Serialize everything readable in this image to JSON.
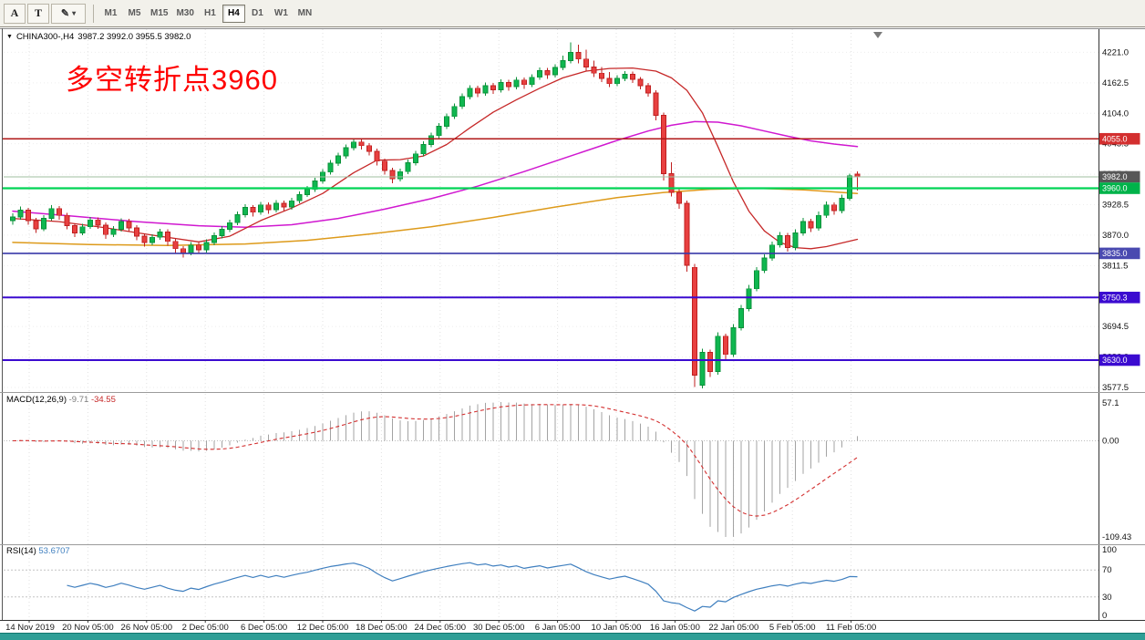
{
  "toolbar": {
    "buttons": {
      "font": "A",
      "text": "T"
    },
    "timeframes": [
      {
        "label": "M1",
        "active": false
      },
      {
        "label": "M5",
        "active": false
      },
      {
        "label": "M15",
        "active": false
      },
      {
        "label": "M30",
        "active": false
      },
      {
        "label": "H1",
        "active": false
      },
      {
        "label": "H4",
        "active": true
      },
      {
        "label": "D1",
        "active": false
      },
      {
        "label": "W1",
        "active": false
      },
      {
        "label": "MN",
        "active": false
      }
    ]
  },
  "icons": {
    "pencil": "✎",
    "caret_down": "▾",
    "symbol_caret": "▼"
  },
  "chart": {
    "symbol": "CHINA300-,H4",
    "ohlc_line": "3987.2 3992.0 3955.5 3982.0",
    "annotation": "多空转折点3960",
    "current_price": 3982.0,
    "hlines": [
      {
        "price": 4055.0,
        "color": "#b01818",
        "width": 1.4
      },
      {
        "price": 3960.0,
        "color": "#00d455",
        "width": 2.2
      },
      {
        "price": 3835.0,
        "color": "#3939a8",
        "width": 1.6
      },
      {
        "price": 3750.3,
        "color": "#3b0bd0",
        "width": 2
      },
      {
        "price": 3630.0,
        "color": "#3b0bd0",
        "width": 2
      }
    ],
    "badges": [
      {
        "label": "4055.0",
        "price": 4055.0,
        "bg": "#d32f2f"
      },
      {
        "label": "3982.0",
        "price": 3982.0,
        "bg": "#575757"
      },
      {
        "label": "3960.0",
        "price": 3960.0,
        "bg": "#00b34a"
      },
      {
        "label": "3835.0",
        "price": 3835.0,
        "bg": "#4a4ab0"
      },
      {
        "label": "3750.3",
        "price": 3750.3,
        "bg": "#3b0bd0"
      },
      {
        "label": "3630.0",
        "price": 3630.0,
        "bg": "#3b0bd0"
      }
    ]
  },
  "chart_data": {
    "type": "candlestick",
    "symbol": "CHINA300-",
    "timeframe": "H4",
    "ylim": [
      3576,
      4240
    ],
    "price_axis_ticks": [
      "4221.0",
      "4162.5",
      "4104.0",
      "4045.5",
      "3987.0",
      "3928.5",
      "3870.0",
      "3811.5",
      "3753.0",
      "3694.5",
      "3636.0",
      "3577.5"
    ],
    "time_axis_labels": [
      "14 Nov 2019",
      "20 Nov 05:00",
      "26 Nov 05:00",
      "2 Dec 05:00",
      "6 Dec 05:00",
      "12 Dec 05:00",
      "18 Dec 05:00",
      "24 Dec 05:00",
      "30 Dec 05:00",
      "6 Jan 05:00",
      "10 Jan 05:00",
      "16 Jan 05:00",
      "22 Jan 05:00",
      "5 Feb 05:00",
      "11 Feb 05:00"
    ],
    "ohlc": [
      [
        3898,
        3912,
        3890,
        3905
      ],
      [
        3905,
        3925,
        3900,
        3918
      ],
      [
        3918,
        3922,
        3890,
        3898
      ],
      [
        3898,
        3903,
        3874,
        3882
      ],
      [
        3882,
        3908,
        3878,
        3902
      ],
      [
        3902,
        3928,
        3898,
        3921
      ],
      [
        3921,
        3926,
        3900,
        3908
      ],
      [
        3908,
        3913,
        3881,
        3888
      ],
      [
        3888,
        3893,
        3866,
        3874
      ],
      [
        3874,
        3892,
        3870,
        3886
      ],
      [
        3886,
        3905,
        3882,
        3899
      ],
      [
        3899,
        3904,
        3882,
        3889
      ],
      [
        3889,
        3894,
        3863,
        3871
      ],
      [
        3871,
        3887,
        3866,
        3881
      ],
      [
        3881,
        3902,
        3877,
        3896
      ],
      [
        3896,
        3901,
        3877,
        3884
      ],
      [
        3884,
        3889,
        3860,
        3868
      ],
      [
        3868,
        3873,
        3848,
        3856
      ],
      [
        3856,
        3872,
        3851,
        3866
      ],
      [
        3866,
        3882,
        3861,
        3876
      ],
      [
        3876,
        3881,
        3850,
        3858
      ],
      [
        3858,
        3863,
        3836,
        3844
      ],
      [
        3844,
        3849,
        3827,
        3836
      ],
      [
        3836,
        3857,
        3831,
        3851
      ],
      [
        3851,
        3856,
        3834,
        3842
      ],
      [
        3842,
        3862,
        3837,
        3856
      ],
      [
        3856,
        3875,
        3851,
        3869
      ],
      [
        3869,
        3887,
        3864,
        3881
      ],
      [
        3881,
        3900,
        3876,
        3894
      ],
      [
        3894,
        3915,
        3889,
        3909
      ],
      [
        3909,
        3929,
        3904,
        3923
      ],
      [
        3923,
        3928,
        3906,
        3914
      ],
      [
        3914,
        3934,
        3909,
        3928
      ],
      [
        3928,
        3933,
        3911,
        3919
      ],
      [
        3919,
        3937,
        3914,
        3931
      ],
      [
        3931,
        3936,
        3916,
        3924
      ],
      [
        3924,
        3942,
        3919,
        3936
      ],
      [
        3936,
        3954,
        3931,
        3948
      ],
      [
        3948,
        3964,
        3943,
        3958
      ],
      [
        3958,
        3980,
        3953,
        3974
      ],
      [
        3974,
        3997,
        3969,
        3991
      ],
      [
        3991,
        4014,
        3986,
        4008
      ],
      [
        4008,
        4028,
        4003,
        4022
      ],
      [
        4022,
        4044,
        4017,
        4038
      ],
      [
        4038,
        4056,
        4033,
        4049
      ],
      [
        4049,
        4054,
        4034,
        4042
      ],
      [
        4042,
        4047,
        4023,
        4031
      ],
      [
        4031,
        4036,
        4004,
        4012
      ],
      [
        4012,
        4017,
        3986,
        3994
      ],
      [
        3994,
        3999,
        3970,
        3978
      ],
      [
        3978,
        3998,
        3973,
        3992
      ],
      [
        3992,
        4015,
        3987,
        4009
      ],
      [
        4009,
        4032,
        4004,
        4026
      ],
      [
        4026,
        4050,
        4021,
        4044
      ],
      [
        4044,
        4067,
        4039,
        4061
      ],
      [
        4061,
        4085,
        4056,
        4079
      ],
      [
        4079,
        4104,
        4074,
        4098
      ],
      [
        4098,
        4123,
        4093,
        4117
      ],
      [
        4117,
        4142,
        4112,
        4136
      ],
      [
        4136,
        4158,
        4131,
        4152
      ],
      [
        4152,
        4157,
        4135,
        4143
      ],
      [
        4143,
        4163,
        4138,
        4157
      ],
      [
        4157,
        4162,
        4141,
        4149
      ],
      [
        4149,
        4169,
        4144,
        4163
      ],
      [
        4163,
        4168,
        4147,
        4155
      ],
      [
        4155,
        4174,
        4150,
        4168
      ],
      [
        4168,
        4173,
        4151,
        4159
      ],
      [
        4159,
        4179,
        4154,
        4173
      ],
      [
        4173,
        4192,
        4168,
        4186
      ],
      [
        4186,
        4191,
        4170,
        4178
      ],
      [
        4178,
        4198,
        4173,
        4192
      ],
      [
        4192,
        4215,
        4187,
        4205
      ],
      [
        4205,
        4240,
        4200,
        4221
      ],
      [
        4221,
        4236,
        4200,
        4208
      ],
      [
        4208,
        4226,
        4186,
        4193
      ],
      [
        4193,
        4205,
        4174,
        4181
      ],
      [
        4181,
        4193,
        4164,
        4171
      ],
      [
        4171,
        4183,
        4154,
        4161
      ],
      [
        4161,
        4177,
        4156,
        4171
      ],
      [
        4171,
        4185,
        4166,
        4179
      ],
      [
        4179,
        4184,
        4162,
        4169
      ],
      [
        4169,
        4174,
        4150,
        4157
      ],
      [
        4157,
        4162,
        4136,
        4143
      ],
      [
        4143,
        4148,
        4090,
        4100
      ],
      [
        4100,
        4105,
        3975,
        3988
      ],
      [
        3988,
        4010,
        3944,
        3952
      ],
      [
        3952,
        3960,
        3921,
        3931
      ],
      [
        3931,
        3936,
        3800,
        3812
      ],
      [
        3808,
        3815,
        3578,
        3601
      ],
      [
        3582,
        3652,
        3576,
        3645
      ],
      [
        3645,
        3650,
        3598,
        3608
      ],
      [
        3608,
        3683,
        3602,
        3676
      ],
      [
        3676,
        3681,
        3632,
        3641
      ],
      [
        3641,
        3699,
        3636,
        3692
      ],
      [
        3692,
        3736,
        3687,
        3729
      ],
      [
        3729,
        3774,
        3724,
        3767
      ],
      [
        3767,
        3809,
        3762,
        3802
      ],
      [
        3802,
        3833,
        3797,
        3826
      ],
      [
        3826,
        3858,
        3821,
        3851
      ],
      [
        3851,
        3876,
        3846,
        3869
      ],
      [
        3869,
        3874,
        3838,
        3846
      ],
      [
        3846,
        3881,
        3841,
        3874
      ],
      [
        3874,
        3903,
        3869,
        3896
      ],
      [
        3896,
        3901,
        3876,
        3884
      ],
      [
        3884,
        3915,
        3879,
        3908
      ],
      [
        3908,
        3935,
        3903,
        3928
      ],
      [
        3928,
        3933,
        3909,
        3917
      ],
      [
        3917,
        3948,
        3912,
        3941
      ],
      [
        3941,
        3988,
        3936,
        3984
      ],
      [
        3987.2,
        3992,
        3955.5,
        3982
      ]
    ],
    "overlays": {
      "ma_fast_red": [
        [
          0,
          3902
        ],
        [
          6,
          3896
        ],
        [
          12,
          3884
        ],
        [
          18,
          3870
        ],
        [
          24,
          3857
        ],
        [
          28,
          3868
        ],
        [
          32,
          3898
        ],
        [
          36,
          3922
        ],
        [
          40,
          3950
        ],
        [
          44,
          3990
        ],
        [
          47,
          4014
        ],
        [
          50,
          4015
        ],
        [
          53,
          4022
        ],
        [
          56,
          4044
        ],
        [
          59,
          4076
        ],
        [
          62,
          4106
        ],
        [
          65,
          4130
        ],
        [
          68,
          4152
        ],
        [
          71,
          4172
        ],
        [
          74,
          4185
        ],
        [
          77,
          4190
        ],
        [
          80,
          4191
        ],
        [
          83,
          4185
        ],
        [
          85,
          4172
        ],
        [
          87,
          4148
        ],
        [
          89,
          4105
        ],
        [
          91,
          4040
        ],
        [
          93,
          3972
        ],
        [
          95,
          3916
        ],
        [
          97,
          3878
        ],
        [
          99,
          3856
        ],
        [
          101,
          3846
        ],
        [
          103,
          3844
        ],
        [
          105,
          3848
        ],
        [
          107,
          3855
        ],
        [
          109,
          3862
        ]
      ],
      "ma_mid_magenta": [
        [
          0,
          3916
        ],
        [
          8,
          3906
        ],
        [
          16,
          3896
        ],
        [
          24,
          3888
        ],
        [
          30,
          3885
        ],
        [
          36,
          3890
        ],
        [
          42,
          3902
        ],
        [
          48,
          3920
        ],
        [
          54,
          3940
        ],
        [
          60,
          3964
        ],
        [
          66,
          3992
        ],
        [
          72,
          4022
        ],
        [
          78,
          4052
        ],
        [
          82,
          4070
        ],
        [
          85,
          4081
        ],
        [
          88,
          4088
        ],
        [
          91,
          4087
        ],
        [
          94,
          4080
        ],
        [
          97,
          4070
        ],
        [
          100,
          4060
        ],
        [
          103,
          4051
        ],
        [
          106,
          4045
        ],
        [
          109,
          4040
        ]
      ],
      "ma_slow_orange": [
        [
          0,
          3856
        ],
        [
          10,
          3852
        ],
        [
          20,
          3850
        ],
        [
          30,
          3853
        ],
        [
          38,
          3860
        ],
        [
          46,
          3872
        ],
        [
          54,
          3886
        ],
        [
          62,
          3904
        ],
        [
          70,
          3924
        ],
        [
          78,
          3942
        ],
        [
          84,
          3952
        ],
        [
          90,
          3958
        ],
        [
          96,
          3960
        ],
        [
          102,
          3957
        ],
        [
          106,
          3953
        ],
        [
          109,
          3950
        ]
      ]
    },
    "indicators": {
      "macd": {
        "label": "MACD(12,26,9)",
        "main_value": "-9.71",
        "signal_value": "-34.55",
        "axis_labels": [
          "57.1",
          "0.00",
          "-109.43"
        ],
        "params": [
          12,
          26,
          9
        ]
      },
      "rsi": {
        "label": "RSI(14)",
        "value": "53.6707",
        "axis_labels": [
          "100",
          "70",
          "30",
          "0"
        ],
        "period": 14,
        "levels": [
          70,
          30
        ]
      }
    }
  },
  "colors": {
    "up": "#0fb750",
    "up_border": "#0a9038",
    "down": "#e84040",
    "down_border": "#bf1f1f",
    "ma_red": "#c62828",
    "ma_magenta": "#d018d0",
    "ma_orange": "#dd9a1a",
    "macd_hist": "#a3a3a3",
    "macd_signal": "#d32f2f",
    "rsi_line": "#3f7fbf",
    "annotation": "#ff0000",
    "current_price_line": "#9fbf9f",
    "bottom_strip": "#2f9e96"
  }
}
